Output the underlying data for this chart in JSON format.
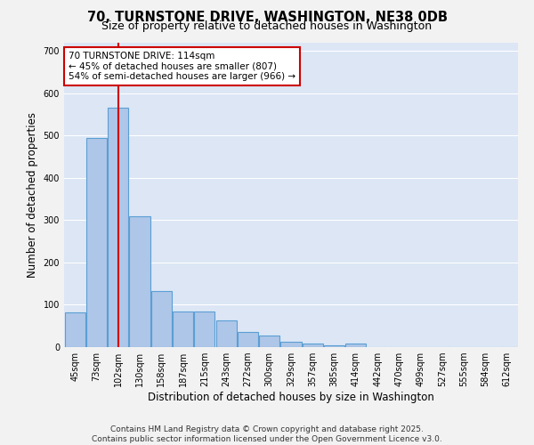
{
  "title_line1": "70, TURNSTONE DRIVE, WASHINGTON, NE38 0DB",
  "title_line2": "Size of property relative to detached houses in Washington",
  "xlabel": "Distribution of detached houses by size in Washington",
  "ylabel": "Number of detached properties",
  "categories": [
    "45sqm",
    "73sqm",
    "102sqm",
    "130sqm",
    "158sqm",
    "187sqm",
    "215sqm",
    "243sqm",
    "272sqm",
    "300sqm",
    "329sqm",
    "357sqm",
    "385sqm",
    "414sqm",
    "442sqm",
    "470sqm",
    "499sqm",
    "527sqm",
    "555sqm",
    "584sqm",
    "612sqm"
  ],
  "values": [
    83,
    493,
    565,
    308,
    133,
    85,
    85,
    63,
    35,
    28,
    13,
    8,
    5,
    8,
    0,
    0,
    0,
    0,
    0,
    0,
    0
  ],
  "bar_color": "#aec6e8",
  "bar_edge_color": "#5a9fd4",
  "bar_edge_width": 0.8,
  "vline_x": 2,
  "vline_color": "#cc0000",
  "annotation_text": "70 TURNSTONE DRIVE: 114sqm\n← 45% of detached houses are smaller (807)\n54% of semi-detached houses are larger (966) →",
  "annotation_box_color": "#ffffff",
  "annotation_box_edge": "#cc0000",
  "ylim": [
    0,
    720
  ],
  "yticks": [
    0,
    100,
    200,
    300,
    400,
    500,
    600,
    700
  ],
  "plot_bg_color": "#dce6f5",
  "fig_bg_color": "#f2f2f2",
  "footer_line1": "Contains HM Land Registry data © Crown copyright and database right 2025.",
  "footer_line2": "Contains public sector information licensed under the Open Government Licence v3.0.",
  "title1_fontsize": 10.5,
  "title2_fontsize": 9,
  "xlabel_fontsize": 8.5,
  "ylabel_fontsize": 8.5,
  "tick_fontsize": 7,
  "annotation_fontsize": 7.5,
  "footer_fontsize": 6.5
}
